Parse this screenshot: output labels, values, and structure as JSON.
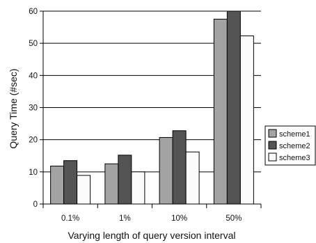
{
  "chart_data": {
    "type": "bar",
    "categories": [
      "0.1%",
      "1%",
      "10%",
      "50%"
    ],
    "series": [
      {
        "name": "scheme1",
        "values": [
          11.8,
          12.5,
          20.7,
          57.5
        ],
        "color": "#a3a3a3"
      },
      {
        "name": "scheme2",
        "values": [
          13.5,
          15.2,
          22.8,
          60.0
        ],
        "color": "#545454"
      },
      {
        "name": "scheme3",
        "values": [
          8.9,
          10.0,
          16.2,
          52.3
        ],
        "color": "#fbfbfb"
      }
    ],
    "xlabel": "Varying length of query version interval",
    "ylabel": "Query Time (#sec)",
    "ylim": [
      0,
      60
    ],
    "yticks": [
      0,
      10,
      20,
      30,
      40,
      50,
      60
    ],
    "grid": "horizontal",
    "legend_position": "right"
  }
}
